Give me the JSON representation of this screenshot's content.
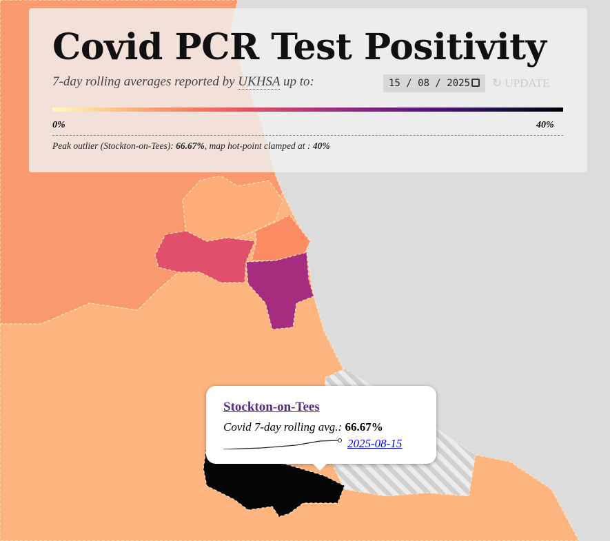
{
  "header": {
    "title": "Covid PCR Test Positivity",
    "subtitle_prefix": "7-day rolling averages reported by",
    "source": "UKHSA",
    "subtitle_suffix": "up to:",
    "date_input": "15 / 08 / 2025",
    "update_button": "UPDATE"
  },
  "legend": {
    "min_label": "0%",
    "max_label": "40%"
  },
  "note": {
    "prefix": "Peak outlier (Stockton-on-Tees):",
    "peak": "66.67%",
    "middle": ", map hot-point clamped at :",
    "clamp": "40%"
  },
  "tooltip": {
    "area": "Stockton-on-Tees",
    "metric_label": "Covid 7-day rolling avg.:",
    "metric_value": "66.67%",
    "date": "2025-08-15"
  }
}
